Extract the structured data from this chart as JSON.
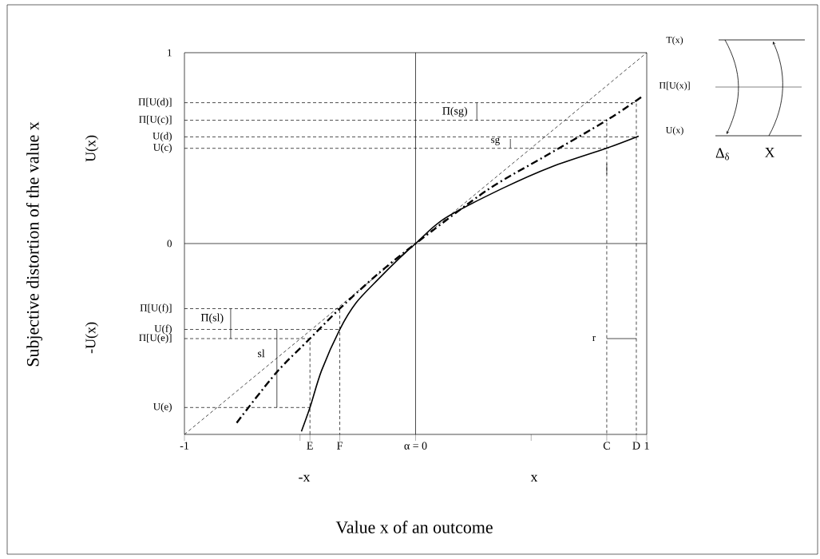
{
  "chart_data": {
    "type": "line",
    "xlabel": "Value x of an outcome",
    "xlim": [
      -1,
      1
    ],
    "ylim": [
      -1,
      1
    ],
    "xticks": [
      -1,
      {
        "value": -0.5,
        "label": null
      },
      {
        "value": -0.457,
        "label": "E"
      },
      {
        "value": -0.328,
        "label": "F"
      },
      {
        "value": 0,
        "label": "α = 0"
      },
      {
        "value": 0.5,
        "label": null
      },
      {
        "value": 0.827,
        "label": "C"
      },
      {
        "value": 0.955,
        "label": "D"
      },
      1
    ],
    "yticks": [
      1,
      {
        "value": 0.738,
        "label": "Π[U(d)]"
      },
      {
        "value": 0.646,
        "label": "Π[U(c)]"
      },
      {
        "value": 0.559,
        "label": "U(d)"
      },
      {
        "value": 0.499,
        "label": "U(c)"
      },
      0,
      {
        "value": -0.341,
        "label": "Π[U(f)]"
      },
      {
        "value": -0.45,
        "label": "U(f)"
      },
      {
        "value": -0.498,
        "label": "Π[U(e)]"
      },
      {
        "value": -0.859,
        "label": "U(e)"
      }
    ],
    "series": [
      {
        "color": "#000000",
        "line_style": "solid",
        "x": [
          -1,
          1
        ],
        "values": [
          0,
          0
        ]
      },
      {
        "color": "#000000",
        "line_style": "solid",
        "x": [
          0,
          0
        ],
        "values": [
          -1,
          1
        ]
      },
      {
        "color": "#000000",
        "line_style": "dashed",
        "x": [
          -1,
          0,
          1
        ],
        "values": [
          -1,
          0,
          1
        ]
      },
      {
        "color": "#000000",
        "line_style": "solid",
        "x": [
          -0.494,
          -0.457,
          -0.407,
          -0.328,
          -0.257,
          -0.164,
          -0.071,
          0,
          0.125,
          0.374,
          0.592,
          0.827,
          0.965
        ],
        "values": [
          -0.984,
          -0.859,
          -0.666,
          -0.45,
          -0.31,
          -0.19,
          -0.078,
          0,
          0.131,
          0.288,
          0.404,
          0.5,
          0.563
        ]
      },
      {
        "color": "#000000",
        "line_style": "dashdot",
        "x": [
          -0.774,
          -0.603,
          -0.457,
          -0.328,
          -0.164,
          0,
          0.311,
          0.561,
          0.827,
          0.976
        ],
        "values": [
          -0.939,
          -0.677,
          -0.498,
          -0.341,
          -0.16,
          0,
          0.281,
          0.458,
          0.646,
          0.767
        ]
      },
      {
        "color": "#000000",
        "line_style": "dashed",
        "x": [
          -1,
          0.955,
          0.955
        ],
        "values": [
          0.738,
          0.738,
          -1
        ]
      },
      {
        "color": "#000000",
        "line_style": "dashed",
        "x": [
          -1,
          0.827,
          0.827
        ],
        "values": [
          0.646,
          0.646,
          -1
        ]
      },
      {
        "color": "#000000",
        "line_style": "dashed",
        "x": [
          -1,
          0.955
        ],
        "values": [
          0.559,
          0.559
        ]
      },
      {
        "color": "#000000",
        "line_style": "dashed",
        "x": [
          -1,
          0.827
        ],
        "values": [
          0.499,
          0.499
        ]
      },
      {
        "color": "#000000",
        "line_style": "dashed",
        "x": [
          -1,
          -0.328,
          -0.328
        ],
        "values": [
          -0.341,
          -0.341,
          -1
        ]
      },
      {
        "color": "#000000",
        "line_style": "dashed",
        "x": [
          -1,
          -0.328
        ],
        "values": [
          -0.45,
          -0.45
        ]
      },
      {
        "color": "#000000",
        "line_style": "dashed",
        "x": [
          -1,
          -0.457,
          -0.457
        ],
        "values": [
          -0.498,
          -0.498,
          -1
        ]
      },
      {
        "color": "#000000",
        "line_style": "dashed",
        "x": [
          -1,
          -0.457
        ],
        "values": [
          -0.859,
          -0.859
        ]
      },
      {
        "color": "#000000",
        "line_style": "solid",
        "x": [
          0.265,
          0.265
        ],
        "values": [
          0.738,
          0.646
        ]
      },
      {
        "color": "#000000",
        "line_style": "solid",
        "x": [
          0.41,
          0.41
        ],
        "values": [
          0.548,
          0.5
        ]
      },
      {
        "color": "#000000",
        "line_style": "solid",
        "x": [
          0.827,
          0.827
        ],
        "values": [
          0.42,
          0.362
        ]
      },
      {
        "color": "#000000",
        "line_style": "solid",
        "x": [
          -0.8,
          -0.8
        ],
        "values": [
          -0.341,
          -0.498
        ]
      },
      {
        "color": "#000000",
        "line_style": "solid",
        "x": [
          -0.6,
          -0.6
        ],
        "values": [
          -0.45,
          -0.859
        ]
      },
      {
        "color": "#000000",
        "line_style": "solid",
        "x": [
          0.827,
          0.955
        ],
        "values": [
          -0.498,
          -0.498
        ]
      }
    ],
    "annotations": [
      "Subjective distortion of the value x",
      "U(x)",
      "-U(x)",
      "-x",
      "x",
      "T(x)",
      "Π[U(x)]",
      "U(x)",
      "Δ$_{δ}$",
      "X",
      "Π(sg)",
      "sg",
      "Π(sl)",
      "sl",
      "r"
    ]
  }
}
